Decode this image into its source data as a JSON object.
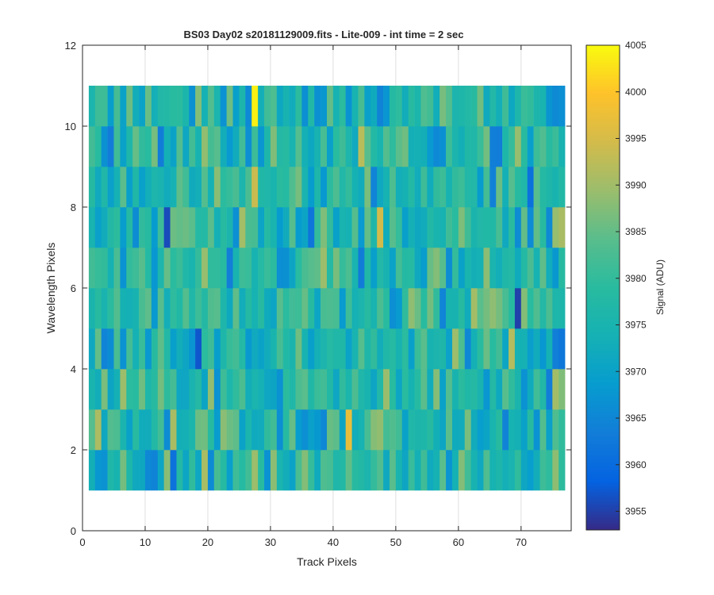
{
  "chart_data": {
    "type": "heatmap",
    "title": "BS03 Day02  s20181129009.fits - Lite-009 - int time = 2 sec",
    "xlabel": "Track Pixels",
    "ylabel": "Wavelength Pixels",
    "xlim": [
      0,
      78
    ],
    "ylim": [
      0,
      12
    ],
    "xticks": [
      0,
      10,
      20,
      30,
      40,
      50,
      60,
      70
    ],
    "yticks": [
      0,
      2,
      4,
      6,
      8,
      10,
      12
    ],
    "grid": true,
    "colorbar": {
      "label": "Signal (ADU)",
      "colormap": "parula",
      "clim": [
        3953,
        4005
      ],
      "ticks": [
        3955,
        3960,
        3965,
        3970,
        3975,
        3980,
        3985,
        3990,
        3995,
        4000,
        4005
      ]
    },
    "x_start": 1,
    "x_end": 77,
    "y_start": 1,
    "y_end": 11,
    "rows": 10,
    "cols": 76,
    "notable_cells": [
      {
        "x": 27,
        "y": 10,
        "value": 4004
      },
      {
        "x": 13,
        "y": 7,
        "value": 3956
      },
      {
        "x": 69,
        "y": 5,
        "value": 3955
      },
      {
        "x": 18,
        "y": 4,
        "value": 3957
      },
      {
        "x": 42,
        "y": 2,
        "value": 3997
      }
    ],
    "value_range": [
      3955,
      4004
    ]
  },
  "colors": {
    "axis": "#262626",
    "grid": "#dfdfdf",
    "background": "#ffffff"
  }
}
